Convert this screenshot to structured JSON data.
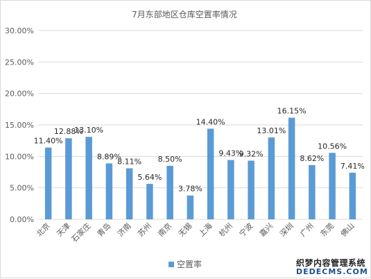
{
  "chart_data": {
    "type": "bar",
    "title": "7月东部地区仓库空置率情况",
    "categories": [
      "北京",
      "天津",
      "石家庄",
      "青岛",
      "济南",
      "苏州",
      "南京",
      "无锡",
      "上海",
      "杭州",
      "宁波",
      "嘉兴",
      "深圳",
      "广州",
      "东莞",
      "佛山"
    ],
    "series": [
      {
        "name": "空置率",
        "values": [
          11.4,
          12.88,
          13.1,
          8.89,
          8.11,
          5.64,
          8.5,
          3.78,
          14.4,
          9.43,
          9.32,
          13.01,
          16.15,
          8.62,
          10.56,
          7.41
        ],
        "labels": [
          "11.40%",
          "12.88%",
          "13.10%",
          "8.89%",
          "8.11%",
          "5.64%",
          "8.50%",
          "3.78%",
          "14.40%",
          "9.43%",
          "9.32%",
          "13.01%",
          "16.15%",
          "8.62%",
          "10.56%",
          "7.41%"
        ],
        "color": "#5b9bd5"
      }
    ],
    "ylim": [
      0,
      30
    ],
    "yticks": [
      0,
      5,
      10,
      15,
      20,
      25,
      30
    ],
    "ytick_labels": [
      "0.00%",
      "5.00%",
      "10.00%",
      "15.00%",
      "20.00%",
      "25.00%",
      "30.00%"
    ],
    "grid": true,
    "legend_position": "bottom",
    "gridline_color": "#d9d9d9",
    "text_color": "#595959"
  },
  "watermark": {
    "line1": "织梦内容管理系统",
    "line2": "DEDECMS.COM"
  }
}
